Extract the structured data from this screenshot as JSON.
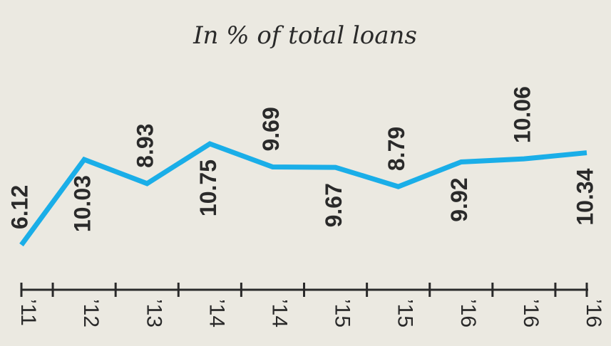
{
  "chart_data": {
    "type": "line",
    "subtitle": "In % of total loans",
    "categories": [
      "’11",
      "’12",
      "’13",
      "’14",
      "’14",
      "’15",
      "’15",
      "’16",
      "’16",
      "’16"
    ],
    "series": [
      {
        "color": "#1aaee8",
        "values": [
          6.12,
          10.03,
          8.93,
          10.75,
          9.69,
          9.67,
          8.79,
          9.92,
          10.06,
          10.34
        ]
      }
    ]
  }
}
